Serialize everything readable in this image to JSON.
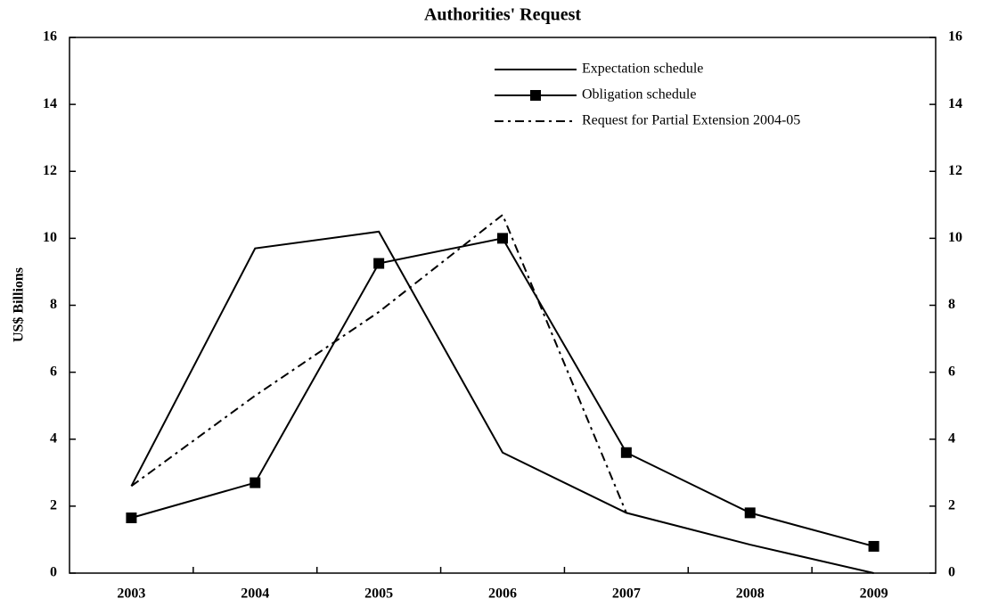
{
  "chart_data": {
    "type": "line",
    "title": "Authorities' Request",
    "y_label": "US$ Billions",
    "categories": [
      "2003",
      "2004",
      "2005",
      "2006",
      "2007",
      "2008",
      "2009"
    ],
    "series": [
      {
        "name": "Expectation schedule",
        "color": "#000000",
        "dash": "solid",
        "marker": "none",
        "values": [
          2.6,
          9.7,
          10.2,
          3.6,
          1.8,
          0.85,
          0
        ]
      },
      {
        "name": "Obligation schedule",
        "color": "#000000",
        "dash": "solid",
        "marker": "square",
        "values": [
          1.65,
          2.7,
          9.25,
          10.0,
          3.6,
          1.8,
          0.8
        ]
      },
      {
        "name": "Request for Partial Extension 2004-05",
        "color": "#000000",
        "dash": "dashdot",
        "marker": "none",
        "values": [
          2.6,
          5.3,
          7.8,
          10.7,
          1.8,
          null,
          null
        ]
      }
    ],
    "ylim": [
      0,
      16
    ],
    "yticks": [
      0,
      2,
      4,
      6,
      8,
      10,
      12,
      14,
      16
    ],
    "y2lim": [
      0,
      16
    ],
    "y2ticks": [
      0,
      2,
      4,
      6,
      8,
      10,
      12,
      14,
      16
    ],
    "grid": false,
    "legend": "upper right"
  }
}
